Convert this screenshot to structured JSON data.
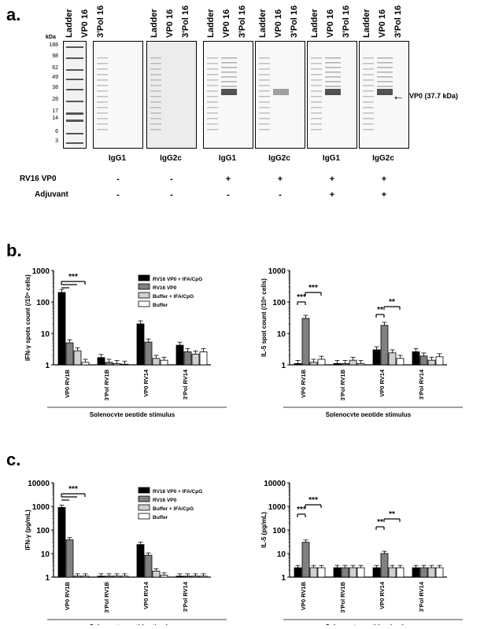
{
  "panel_a": {
    "letter": "a.",
    "kda_header": "kDa",
    "kda_marks": [
      "188",
      "98",
      "62",
      "49",
      "38",
      "28",
      "17",
      "14",
      "6",
      "3"
    ],
    "lane_labels": [
      "Ladder",
      "VP0 16",
      "3'Pol 16"
    ],
    "blot_labels": [
      "IgG1",
      "IgG2c",
      "IgG1",
      "IgG2c",
      "IgG1",
      "IgG2c"
    ],
    "arrow_label": "VP0 (37.7 kDa)",
    "rows": [
      {
        "label": "RV16 VP0",
        "marks": [
          "-",
          "-",
          "+",
          "+",
          "+",
          "+"
        ]
      },
      {
        "label": "Adjuvant",
        "marks": [
          "-",
          "-",
          "-",
          "-",
          "+",
          "+"
        ]
      }
    ]
  },
  "panel_b": {
    "letter": "b.",
    "stimulus_label": "Splenocyte peptide stimulus"
  },
  "panel_c": {
    "letter": "c.",
    "stimulus_label": "Splenocyte peptide stimulus"
  },
  "chart_data": [
    {
      "type": "bar",
      "panel": "b-left",
      "ylabel": "IFN-γ spots count (/10⁶ cells)",
      "xlabel": "Splenocyte peptide stimulus",
      "yscale": "log",
      "ylim": [
        1,
        1000
      ],
      "yticks": [
        "1",
        "10",
        "100",
        "1000"
      ],
      "categories": [
        "VP0 RV1B",
        "3'Pol RV1B",
        "VP0 RV14",
        "3'Pol RV14"
      ],
      "series": [
        {
          "name": "RV16 VP0 + IFA/CpG",
          "color": "#000000",
          "values": [
            200,
            1.7,
            20,
            4.2
          ]
        },
        {
          "name": "RV16 VP0",
          "color": "#808080",
          "values": [
            5,
            1.2,
            5.3,
            2.6
          ]
        },
        {
          "name": "Buffer + IFA/CpG",
          "color": "#d0d0d0",
          "values": [
            2.8,
            1.1,
            1.6,
            2.2
          ]
        },
        {
          "name": "Buffer",
          "color": "#ffffff",
          "values": [
            1.2,
            1.05,
            1.4,
            2.6
          ]
        }
      ],
      "annotations": [
        "***"
      ]
    },
    {
      "type": "bar",
      "panel": "b-right",
      "ylabel": "IL-5 spot count (/10⁶ cells)",
      "xlabel": "Splenocyte peptide stimulus",
      "yscale": "log",
      "ylim": [
        1,
        1000
      ],
      "yticks": [
        "1",
        "10",
        "100",
        "1000"
      ],
      "categories": [
        "VP0 RV1B",
        "3'Pol RV1B",
        "VP0 RV14",
        "3'Pol RV14"
      ],
      "series": [
        {
          "name": "RV16 VP0 + IFA/CpG",
          "color": "#000000",
          "values": [
            1.1,
            1.1,
            3,
            2.6
          ]
        },
        {
          "name": "RV16 VP0",
          "color": "#808080",
          "values": [
            30,
            1.1,
            18,
            1.9
          ]
        },
        {
          "name": "Buffer + IFA/CpG",
          "color": "#d0d0d0",
          "values": [
            1.2,
            1.4,
            2.4,
            1.4
          ]
        },
        {
          "name": "Buffer",
          "color": "#ffffff",
          "values": [
            1.5,
            1.1,
            1.6,
            1.8
          ]
        }
      ],
      "annotations": [
        "***",
        "***",
        "**",
        "**"
      ]
    },
    {
      "type": "bar",
      "panel": "c-left",
      "ylabel": "IFN-γ (pg/mL)",
      "xlabel": "Splenocyte peptide stimulus",
      "yscale": "log",
      "ylim": [
        1,
        10000
      ],
      "yticks": [
        "1",
        "10",
        "100",
        "1000",
        "10000"
      ],
      "categories": [
        "VP0 RV1B",
        "3'Pol RV1B",
        "VP0 RV14",
        "3'Pol RV14"
      ],
      "series": [
        {
          "name": "RV16 VP0 + IFA/CpG",
          "color": "#000000",
          "values": [
            900,
            1.1,
            24,
            1.1
          ]
        },
        {
          "name": "RV16 VP0",
          "color": "#808080",
          "values": [
            38,
            1.1,
            8.5,
            1.1
          ]
        },
        {
          "name": "Buffer + IFA/CpG",
          "color": "#d0d0d0",
          "values": [
            1.1,
            1.1,
            1.8,
            1.1
          ]
        },
        {
          "name": "Buffer",
          "color": "#ffffff",
          "values": [
            1.1,
            1.1,
            1.2,
            1.1
          ]
        }
      ],
      "annotations": [
        "***"
      ]
    },
    {
      "type": "bar",
      "panel": "c-right",
      "ylabel": "IL-5 (pg/mL)",
      "xlabel": "Splenocyte peptide stimulus",
      "yscale": "log",
      "ylim": [
        1,
        10000
      ],
      "yticks": [
        "1",
        "10",
        "100",
        "1000",
        "10000"
      ],
      "categories": [
        "VP0 RV1B",
        "3'Pol RV1B",
        "VP0 RV14",
        "3'Pol RV14"
      ],
      "series": [
        {
          "name": "RV16 VP0 + IFA/CpG",
          "color": "#000000",
          "values": [
            2.5,
            2.5,
            2.5,
            2.5
          ]
        },
        {
          "name": "RV16 VP0",
          "color": "#808080",
          "values": [
            30,
            2.5,
            10,
            2.5
          ]
        },
        {
          "name": "Buffer + IFA/CpG",
          "color": "#d0d0d0",
          "values": [
            2.5,
            2.5,
            2.5,
            2.5
          ]
        },
        {
          "name": "Buffer",
          "color": "#ffffff",
          "values": [
            2.5,
            2.5,
            2.5,
            2.5
          ]
        }
      ],
      "annotations": [
        "***",
        "***",
        "**",
        "**"
      ]
    }
  ]
}
